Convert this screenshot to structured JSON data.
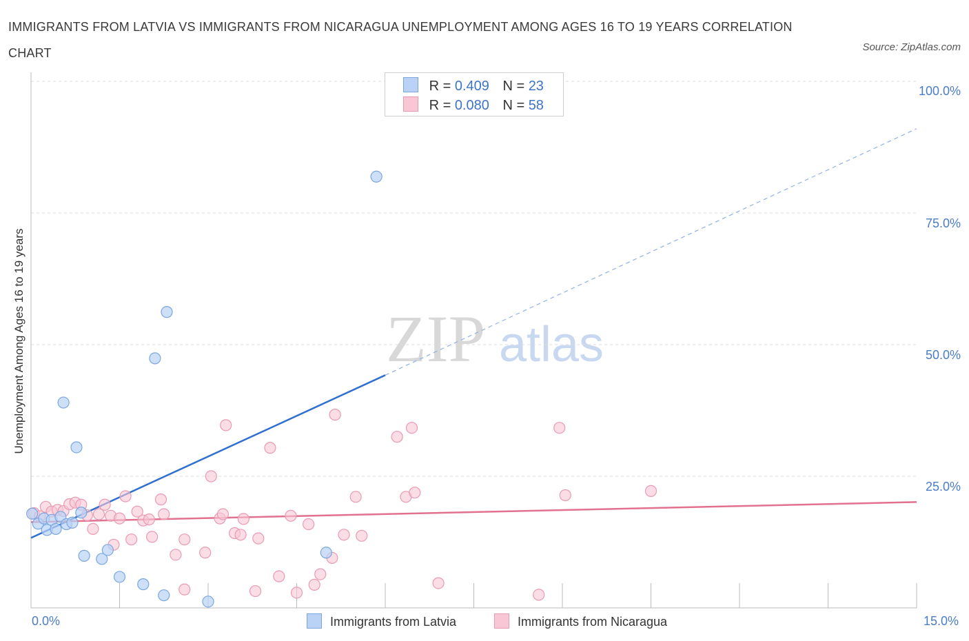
{
  "title": "IMMIGRANTS FROM LATVIA VS IMMIGRANTS FROM NICARAGUA UNEMPLOYMENT AMONG AGES 16 TO 19 YEARS CORRELATION CHART",
  "source": "Source: ZipAtlas.com",
  "watermark": {
    "zip": "ZIP",
    "atlas": "atlas"
  },
  "legend_stats": [
    {
      "r_label": "R =",
      "r_value": "0.409",
      "n_label": "N =",
      "n_value": "23"
    },
    {
      "r_label": "R =",
      "r_value": "0.080",
      "n_label": "N =",
      "n_value": "58"
    }
  ],
  "colors": {
    "latvia_fill": "#b9d2f5",
    "latvia_stroke": "#7aa6e0",
    "latvia_line": "#2f6fcf",
    "nicaragua_fill": "#f8c6d5",
    "nicaragua_stroke": "#e99ab3",
    "nicaragua_line": "#e2708f",
    "axis_text": "#4a7cc7",
    "grid": "#dddddd"
  },
  "chart_data": {
    "type": "scatter",
    "title": "IMMIGRANTS FROM LATVIA VS IMMIGRANTS FROM NICARAGUA UNEMPLOYMENT AMONG AGES 16 TO 19 YEARS CORRELATION CHART",
    "xlabel": "",
    "ylabel": "Unemployment Among Ages 16 to 19 years",
    "xlim": [
      0,
      15
    ],
    "ylim": [
      0,
      100
    ],
    "x_tick_labels": [
      "0.0%",
      "15.0%"
    ],
    "y_tick_values": [
      25,
      50,
      75,
      100
    ],
    "y_tick_labels": [
      "25.0%",
      "50.0%",
      "75.0%",
      "100.0%"
    ],
    "grid": true,
    "legend": [
      "Immigrants from Latvia",
      "Immigrants from Nicaragua"
    ],
    "series": [
      {
        "name": "Immigrants from Latvia",
        "trend": {
          "x0": 0,
          "y0": 13.3,
          "x1": 6.0,
          "y1": 44.2,
          "dashed_to_x": 15.0,
          "dashed_to_y": 91.0
        },
        "points": [
          [
            0.02,
            17.9
          ],
          [
            0.12,
            16.0
          ],
          [
            0.22,
            17.0
          ],
          [
            0.27,
            14.8
          ],
          [
            0.35,
            16.7
          ],
          [
            0.42,
            15.0
          ],
          [
            0.5,
            17.3
          ],
          [
            0.6,
            15.9
          ],
          [
            0.7,
            16.2
          ],
          [
            0.85,
            18.1
          ],
          [
            0.55,
            39.0
          ],
          [
            0.77,
            30.5
          ],
          [
            0.9,
            9.9
          ],
          [
            1.2,
            9.3
          ],
          [
            1.3,
            11.0
          ],
          [
            1.5,
            5.9
          ],
          [
            1.9,
            4.5
          ],
          [
            2.1,
            47.4
          ],
          [
            2.3,
            56.2
          ],
          [
            2.25,
            2.4
          ],
          [
            3.0,
            1.2
          ],
          [
            5.85,
            81.9
          ],
          [
            5.0,
            10.5
          ]
        ]
      },
      {
        "name": "Immigrants from Nicaragua",
        "trend": {
          "x0": 0,
          "y0": 16.3,
          "x1": 15.0,
          "y1": 20.1
        },
        "points": [
          [
            0.05,
            18.0
          ],
          [
            0.15,
            17.4
          ],
          [
            0.25,
            19.2
          ],
          [
            0.35,
            18.3
          ],
          [
            0.45,
            18.6
          ],
          [
            0.55,
            18.4
          ],
          [
            0.65,
            19.7
          ],
          [
            0.75,
            20.0
          ],
          [
            0.85,
            19.6
          ],
          [
            0.95,
            17.6
          ],
          [
            1.05,
            15.0
          ],
          [
            1.15,
            17.8
          ],
          [
            1.25,
            19.6
          ],
          [
            1.35,
            17.5
          ],
          [
            1.4,
            12.0
          ],
          [
            1.5,
            17.0
          ],
          [
            1.6,
            21.2
          ],
          [
            1.7,
            13.0
          ],
          [
            1.8,
            18.3
          ],
          [
            1.9,
            16.6
          ],
          [
            2.0,
            16.8
          ],
          [
            2.05,
            13.5
          ],
          [
            2.2,
            20.6
          ],
          [
            2.25,
            17.8
          ],
          [
            2.45,
            10.1
          ],
          [
            2.6,
            13.0
          ],
          [
            2.6,
            3.5
          ],
          [
            2.95,
            10.5
          ],
          [
            3.05,
            25.0
          ],
          [
            3.2,
            17.0
          ],
          [
            3.25,
            17.8
          ],
          [
            3.3,
            34.7
          ],
          [
            3.45,
            14.2
          ],
          [
            3.55,
            13.9
          ],
          [
            3.6,
            16.9
          ],
          [
            3.8,
            3.2
          ],
          [
            3.85,
            13.2
          ],
          [
            4.05,
            30.4
          ],
          [
            4.2,
            6.0
          ],
          [
            4.4,
            17.5
          ],
          [
            4.5,
            2.9
          ],
          [
            4.7,
            15.9
          ],
          [
            4.8,
            4.4
          ],
          [
            4.9,
            6.4
          ],
          [
            5.1,
            9.5
          ],
          [
            5.15,
            36.7
          ],
          [
            5.3,
            13.9
          ],
          [
            5.5,
            21.1
          ],
          [
            5.6,
            13.7
          ],
          [
            6.2,
            32.5
          ],
          [
            6.35,
            21.1
          ],
          [
            6.45,
            34.2
          ],
          [
            6.5,
            21.9
          ],
          [
            6.9,
            4.7
          ],
          [
            8.6,
            2.5
          ],
          [
            8.95,
            34.2
          ],
          [
            9.05,
            21.4
          ],
          [
            10.5,
            22.2
          ]
        ]
      }
    ]
  },
  "legend_bottom": {
    "latvia": "Immigrants from Latvia",
    "nicaragua": "Immigrants from Nicaragua"
  }
}
